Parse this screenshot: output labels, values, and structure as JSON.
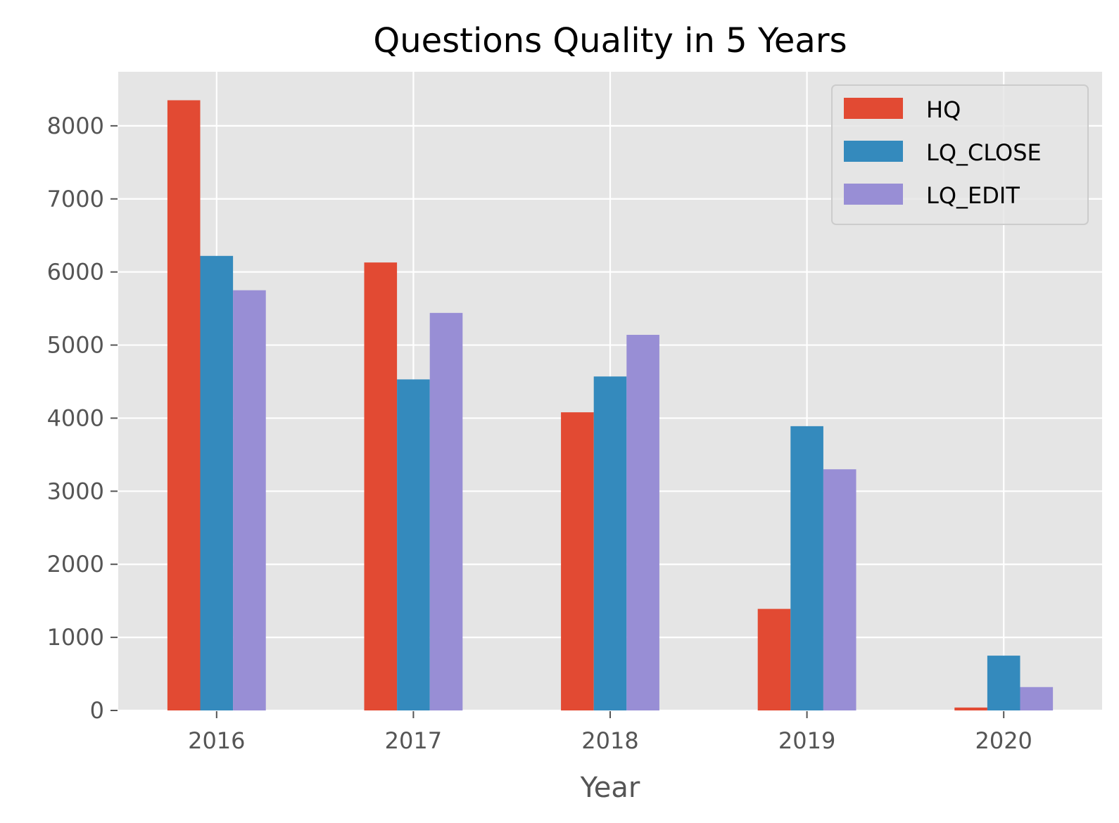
{
  "chart_data": {
    "type": "bar",
    "title": "Questions Quality in 5 Years",
    "xlabel": "Year",
    "ylabel": "",
    "categories": [
      "2016",
      "2017",
      "2018",
      "2019",
      "2020"
    ],
    "series": [
      {
        "name": "HQ",
        "color": "#E24A33",
        "values": [
          8350,
          6130,
          4080,
          1390,
          40
        ]
      },
      {
        "name": "LQ_CLOSE",
        "color": "#348ABD",
        "values": [
          6220,
          4530,
          4570,
          3890,
          750
        ]
      },
      {
        "name": "LQ_EDIT",
        "color": "#988ED5",
        "values": [
          5750,
          5440,
          5140,
          3300,
          320
        ]
      }
    ],
    "ylim": [
      0,
      8740
    ],
    "yticks": [
      0,
      1000,
      2000,
      3000,
      4000,
      5000,
      6000,
      7000,
      8000
    ],
    "ytick_labels": [
      "0",
      "1000",
      "2000",
      "3000",
      "4000",
      "5000",
      "6000",
      "7000",
      "8000"
    ],
    "grid": true,
    "legend_position": "top-right",
    "background_color": "#E5E5E5",
    "grid_color": "#FFFFFF"
  }
}
